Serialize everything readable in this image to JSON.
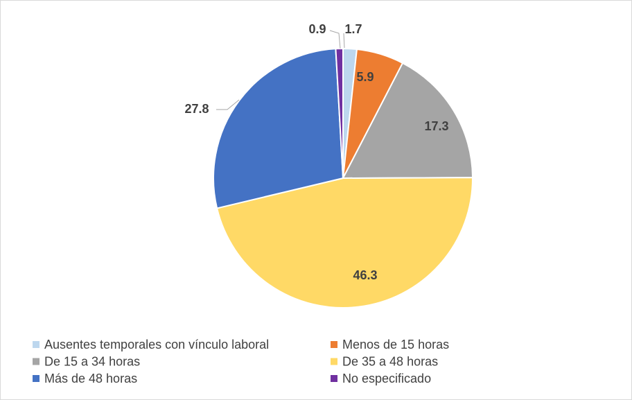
{
  "chart_data": {
    "type": "pie",
    "categories": [
      "Ausentes temporales con vínculo laboral",
      "Menos de 15 horas",
      "De 15 a 34 horas",
      "De 35 a 48 horas",
      "Más de 48 horas",
      "No especificado"
    ],
    "values": [
      1.7,
      5.9,
      17.3,
      46.3,
      27.8,
      0.9
    ],
    "colors": [
      "#bdd7ee",
      "#ed7d31",
      "#a5a5a5",
      "#ffd966",
      "#4472c4",
      "#7030a0"
    ],
    "legend": "bottom"
  }
}
